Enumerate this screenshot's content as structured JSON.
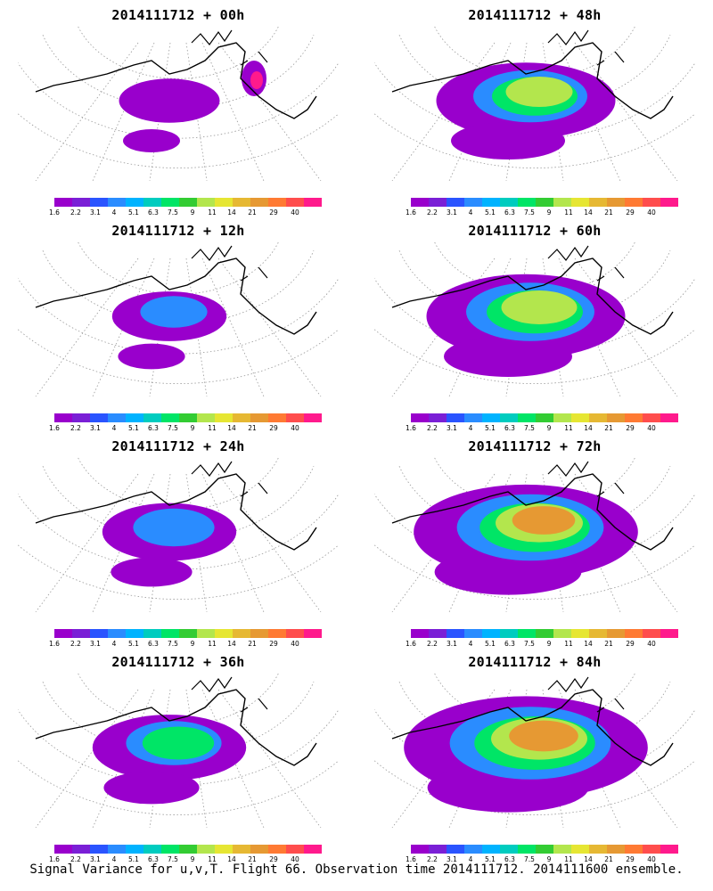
{
  "panels": [
    {
      "title": "2014111712 + 00h",
      "intensity": 0.15
    },
    {
      "title": "2014111712 + 48h",
      "intensity": 0.55
    },
    {
      "title": "2014111712 + 12h",
      "intensity": 0.22
    },
    {
      "title": "2014111712 + 60h",
      "intensity": 0.65
    },
    {
      "title": "2014111712 + 24h",
      "intensity": 0.32
    },
    {
      "title": "2014111712 + 72h",
      "intensity": 0.78
    },
    {
      "title": "2014111712 + 36h",
      "intensity": 0.42
    },
    {
      "title": "2014111712 + 84h",
      "intensity": 0.88
    }
  ],
  "colorbar": {
    "colors": [
      "#9900cc",
      "#7a1fd6",
      "#2a54ff",
      "#2a8cff",
      "#00b3ff",
      "#00ccbf",
      "#00e566",
      "#33cc33",
      "#b3e64d",
      "#e6e633",
      "#e6b833",
      "#e69933",
      "#ff7a33",
      "#ff4d4d",
      "#ff1a8c"
    ],
    "ticks": [
      "1.6",
      "2.2",
      "3.1",
      "4",
      "5.1",
      "6.3",
      "7.5",
      "9",
      "11",
      "14",
      "21",
      "29",
      "40"
    ]
  },
  "footer": "Signal Variance for u,v,T. Flight 66. Observation time 2014111712. 2014111600 ensemble.",
  "chart_data": {
    "type": "heatmap",
    "title": "Signal Variance for u,v,T. Flight 66. Observation time 2014111712. 2014111600 ensemble.",
    "panels": [
      "2014111712 + 00h",
      "2014111712 + 12h",
      "2014111712 + 24h",
      "2014111712 + 36h",
      "2014111712 + 48h",
      "2014111712 + 60h",
      "2014111712 + 72h",
      "2014111712 + 84h"
    ],
    "colorbar_levels": [
      1.6,
      2.2,
      3.1,
      4,
      5.1,
      6.3,
      7.5,
      9,
      11,
      14,
      21,
      29,
      40
    ]
  }
}
